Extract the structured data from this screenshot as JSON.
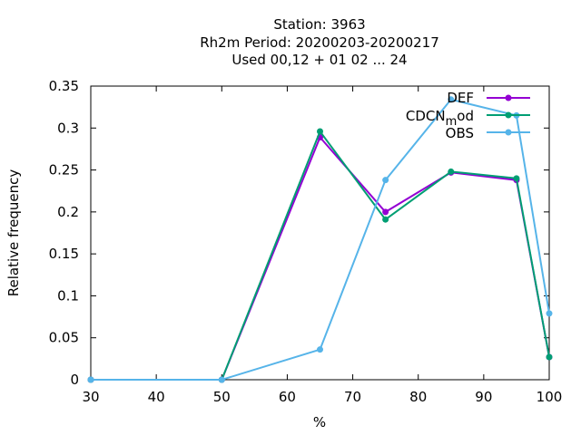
{
  "chart_data": {
    "type": "line",
    "title_lines": [
      "Station:     3963",
      "Rh2m  Period: 20200203-20200217",
      "Used  00,12  + 01 02 ... 24"
    ],
    "xlabel": "%",
    "ylabel": "Relative frequency",
    "xlim": [
      30,
      100
    ],
    "ylim": [
      0,
      0.35
    ],
    "xticks": [
      "30",
      "40",
      "50",
      "60",
      "70",
      "80",
      "90",
      "100"
    ],
    "yticks": [
      "0",
      "0.05",
      "0.1",
      "0.15",
      "0.2",
      "0.25",
      "0.3",
      "0.35"
    ],
    "grid": false,
    "legend_position": "top-right",
    "series": [
      {
        "name": "DEF",
        "color": "#9400d3",
        "x": [
          30,
          50,
          65,
          75,
          85,
          95,
          100
        ],
        "y": [
          0,
          0,
          0.289,
          0.2,
          0.247,
          0.238,
          0.027
        ]
      },
      {
        "name": "CDCN_mod",
        "name_main": "CDCN",
        "name_sub": "m",
        "name_tail": "od",
        "color": "#009e73",
        "x": [
          30,
          50,
          65,
          75,
          85,
          95,
          100
        ],
        "y": [
          0,
          0,
          0.296,
          0.191,
          0.248,
          0.24,
          0.027
        ]
      },
      {
        "name": "OBS",
        "color": "#56b4e9",
        "x": [
          30,
          50,
          65,
          75,
          85,
          95,
          100
        ],
        "y": [
          0,
          0,
          0.036,
          0.238,
          0.334,
          0.315,
          0.079
        ]
      }
    ]
  }
}
